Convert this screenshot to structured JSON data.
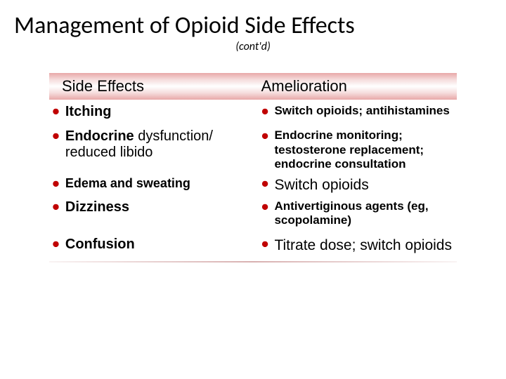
{
  "title": "Management of Opioid Side Effects",
  "subtitle": "(cont'd)",
  "headers": {
    "left": "Side Effects",
    "right": "Amelioration"
  },
  "rows": [
    {
      "side_effect": {
        "bold": "Itching",
        "plain": ""
      },
      "amelioration": {
        "text": "Switch opioids; antihistamines",
        "style": "small"
      }
    },
    {
      "side_effect": {
        "bold": "Endocrine",
        "plain": "dysfunction/ reduced libido"
      },
      "amelioration": {
        "text": "Endocrine monitoring; testosterone replacement; endocrine consultation",
        "style": "small"
      }
    },
    {
      "side_effect": {
        "bold": "Edema and sweating",
        "plain": ""
      },
      "amelioration": {
        "text": "Switch opioids",
        "style": "large"
      },
      "tight": true,
      "se_small": true
    },
    {
      "side_effect": {
        "bold": "Dizziness",
        "plain": ""
      },
      "amelioration": {
        "text": "Antivertiginous agents (eg, scopolamine)",
        "style": "small"
      }
    },
    {
      "side_effect": {
        "bold": "Confusion",
        "plain": ""
      },
      "amelioration": {
        "text": "Titrate dose; switch opioids",
        "style": "large"
      }
    }
  ],
  "colors": {
    "bullet": "#c00000",
    "header_grad_outer": "#e8a8a8",
    "header_grad_inner": "#ffffff",
    "text": "#000000"
  }
}
